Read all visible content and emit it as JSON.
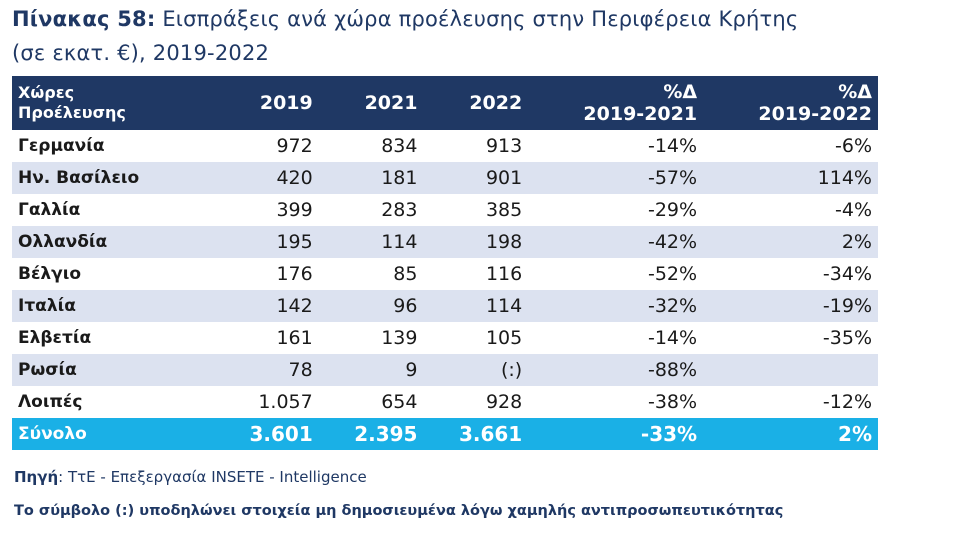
{
  "title": {
    "label": "Πίνακας 58:",
    "text": "Εισπράξεις ανά χώρα προέλευσης στην Περιφέρεια Κρήτης",
    "subtitle": "(σε εκατ. €), 2019-2022"
  },
  "table": {
    "headers": {
      "country_line1": "Χώρες",
      "country_line2": "Προέλευσης",
      "y2019": "2019",
      "y2021": "2021",
      "y2022": "2022",
      "pct1_line1": "%Δ",
      "pct1_line2": "2019-2021",
      "pct2_line1": "%Δ",
      "pct2_line2": "2019-2022"
    },
    "rows": [
      {
        "country": "Γερμανία",
        "y2019": "972",
        "y2021": "834",
        "y2022": "913",
        "pct1": "-14%",
        "pct2": "-6%"
      },
      {
        "country": "Ην. Βασίλειο",
        "y2019": "420",
        "y2021": "181",
        "y2022": "901",
        "pct1": "-57%",
        "pct2": "114%"
      },
      {
        "country": "Γαλλία",
        "y2019": "399",
        "y2021": "283",
        "y2022": "385",
        "pct1": "-29%",
        "pct2": "-4%"
      },
      {
        "country": "Ολλανδία",
        "y2019": "195",
        "y2021": "114",
        "y2022": "198",
        "pct1": "-42%",
        "pct2": "2%"
      },
      {
        "country": "Βέλγιο",
        "y2019": "176",
        "y2021": "85",
        "y2022": "116",
        "pct1": "-52%",
        "pct2": "-34%"
      },
      {
        "country": "Ιταλία",
        "y2019": "142",
        "y2021": "96",
        "y2022": "114",
        "pct1": "-32%",
        "pct2": "-19%"
      },
      {
        "country": "Ελβετία",
        "y2019": "161",
        "y2021": "139",
        "y2022": "105",
        "pct1": "-14%",
        "pct2": "-35%"
      },
      {
        "country": "Ρωσία",
        "y2019": "78",
        "y2021": "9",
        "y2022": "(:)",
        "pct1": "-88%",
        "pct2": ""
      },
      {
        "country": "Λοιπές",
        "y2019": "1.057",
        "y2021": "654",
        "y2022": "928",
        "pct1": "-38%",
        "pct2": "-12%"
      }
    ],
    "total": {
      "country": "Σύνολο",
      "y2019": "3.601",
      "y2021": "2.395",
      "y2022": "3.661",
      "pct1": "-33%",
      "pct2": "2%"
    }
  },
  "source": {
    "label": "Πηγή",
    "text": ": ΤτΕ - Επεξεργασία INSETE - Intelligence"
  },
  "note": "Το σύμβολο (:) υποδηλώνει στοιχεία μη δημοσιευμένα λόγω χαμηλής αντιπροσωπευτικότητας",
  "colors": {
    "header_bg": "#1f3864",
    "stripe": "#dce2f0",
    "total_bg": "#1ab0e6"
  }
}
